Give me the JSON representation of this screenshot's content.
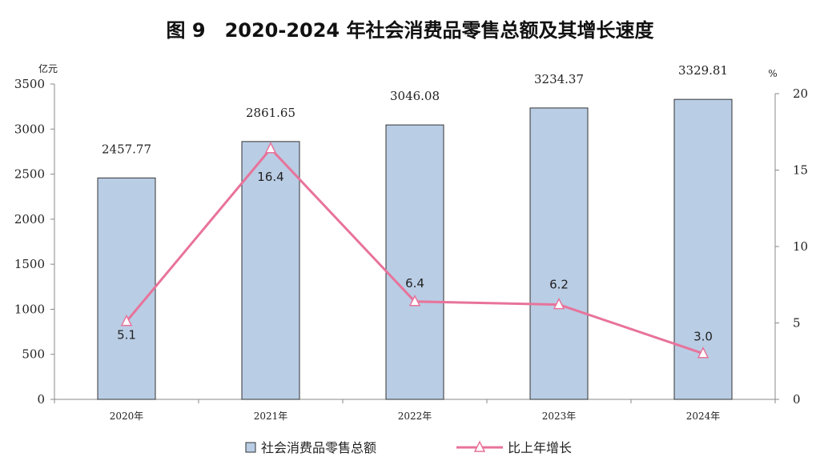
{
  "chart_data": {
    "type": "bar",
    "title": "图 9　2020-2024 年社会消费品零售总额及其增长速度",
    "categories": [
      "2020年",
      "2021年",
      "2022年",
      "2023年",
      "2024年"
    ],
    "series": [
      {
        "name": "社会消费品零售总额",
        "type": "bar",
        "axis": "left",
        "values": [
          2457.77,
          2861.65,
          3046.08,
          3234.37,
          3329.81
        ],
        "labels": [
          "2457.77",
          "2861.65",
          "3046.08",
          "3234.37",
          "3329.81"
        ],
        "color": "#b9cde5"
      },
      {
        "name": "比上年增长",
        "type": "line",
        "axis": "right",
        "values": [
          5.1,
          16.4,
          6.4,
          6.2,
          3.0
        ],
        "labels": [
          "5.1",
          "16.4",
          "6.4",
          "6.2",
          "3.0"
        ],
        "color": "#e8739a"
      }
    ],
    "ylabel_left": "亿元",
    "ylabel_right": "%",
    "ylim_left": [
      0,
      3500
    ],
    "yticks_left": [
      "0",
      "500",
      "1000",
      "1500",
      "2000",
      "2500",
      "3000",
      "3500"
    ],
    "ylim_right": [
      0,
      20
    ],
    "yticks_right": [
      "0",
      "5",
      "10",
      "15",
      "20"
    ],
    "legend_position": "bottom",
    "grid": false
  }
}
